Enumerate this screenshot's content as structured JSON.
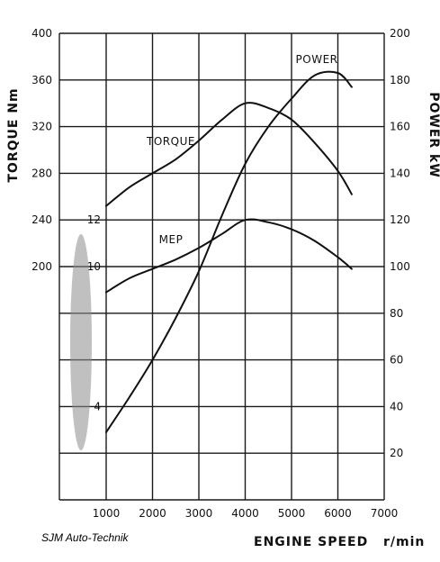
{
  "chart_data": {
    "type": "line",
    "xlabel": "ENGINE SPEED",
    "xunit": "r/min",
    "xlim": [
      1000,
      7000
    ],
    "x_ticks": [
      "1000",
      "2000",
      "3000",
      "4000",
      "5000",
      "6000",
      "7000"
    ],
    "left_axis": {
      "label": "TORQUE Nm",
      "range": [
        0,
        400
      ],
      "ticks": [
        "400",
        "360",
        "320",
        "280",
        "240",
        "200"
      ],
      "tick_values": [
        400,
        360,
        320,
        280,
        240,
        200
      ]
    },
    "left_inner_axis": {
      "range": [
        0,
        16
      ],
      "ticks": [
        "12",
        "10",
        "4"
      ],
      "tick_values": [
        12,
        10,
        4
      ]
    },
    "right_axis": {
      "label": "POWER kW",
      "range": [
        0,
        200
      ],
      "ticks": [
        "200",
        "180",
        "160",
        "140",
        "120",
        "100",
        "80",
        "60",
        "40",
        "20"
      ],
      "tick_values": [
        200,
        180,
        160,
        140,
        120,
        100,
        80,
        60,
        40,
        20
      ]
    },
    "grid": true,
    "series": [
      {
        "name": "TORQUE",
        "axis": "left",
        "x": [
          1000,
          1500,
          2000,
          2500,
          3000,
          3500,
          4000,
          4500,
          5000,
          5500,
          6000,
          6300
        ],
        "y": [
          252,
          268,
          280,
          292,
          308,
          326,
          340,
          336,
          326,
          306,
          282,
          262
        ]
      },
      {
        "name": "POWER",
        "axis": "right",
        "x": [
          1000,
          1500,
          2000,
          2500,
          3000,
          3500,
          4000,
          4500,
          5000,
          5500,
          6000,
          6300
        ],
        "y": [
          29,
          44,
          60,
          78,
          98,
          122,
          144,
          160,
          172,
          182,
          183,
          177
        ]
      },
      {
        "name": "MEP",
        "axis": "left_inner",
        "x": [
          1000,
          1500,
          2000,
          2500,
          3000,
          3500,
          4000,
          4500,
          5000,
          5500,
          6000,
          6300
        ],
        "y": [
          8.9,
          9.5,
          9.9,
          10.3,
          10.8,
          11.4,
          12.0,
          11.9,
          11.6,
          11.1,
          10.4,
          9.9
        ]
      }
    ]
  },
  "credit": "SJM Auto-Technik"
}
